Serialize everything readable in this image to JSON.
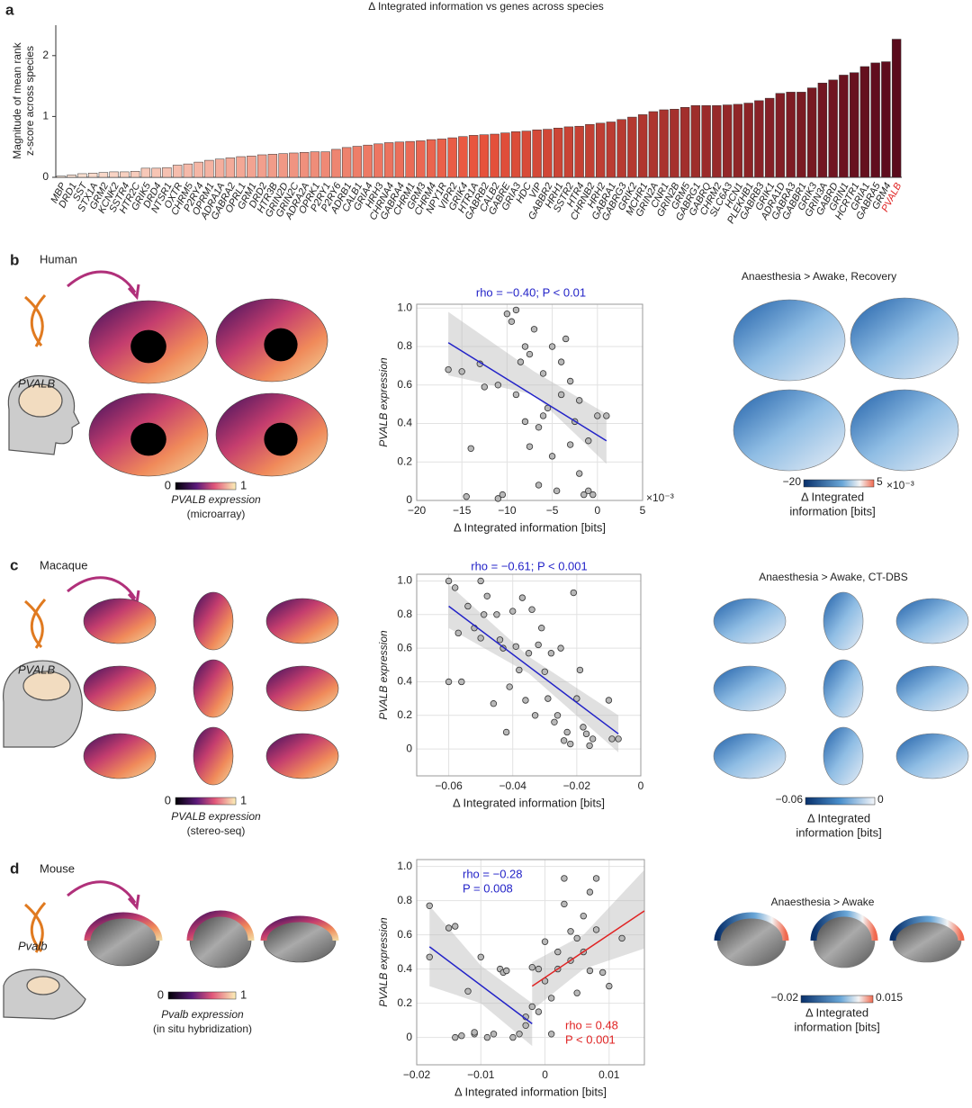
{
  "chart_data": [
    {
      "type": "bar",
      "panel": "a",
      "title": "Δ Integrated information vs genes across species",
      "ylabel": [
        "Magnitude of mean rank",
        "z-score across species"
      ],
      "categories": [
        "MBP",
        "DRD1",
        "SST",
        "STX1A",
        "GRM2",
        "KCNK2",
        "SSTR4",
        "HTR2C",
        "GRIK5",
        "DRD4",
        "NTSR1",
        "OXTR",
        "CHRM5",
        "P2RY4",
        "OPRM1",
        "ADRA1A",
        "GABRA2",
        "OPRL1",
        "GRM1",
        "DRD2",
        "HTR3B",
        "GRIN2D",
        "GRIN2C",
        "ADRA2A",
        "OPRK1",
        "P2RY1",
        "P2RY6",
        "ADRB1",
        "CALB1",
        "GRIA4",
        "HRH3",
        "CHRNA4",
        "GABRA4",
        "CHRM1",
        "GRM3",
        "CHRM4",
        "NPY1R",
        "VIPR2",
        "GRIK4",
        "HTR1A",
        "GABRB2",
        "CALB2",
        "GABRE",
        "GRIA3",
        "HDC",
        "VIP",
        "GABBR2",
        "HRH1",
        "SSTR2",
        "HTR4",
        "CHRNB2",
        "HRH2",
        "GABRA1",
        "GABRG3",
        "GRIK2",
        "MCHR1",
        "GRIN2A",
        "CNR1",
        "GRIN2B",
        "GRM5",
        "GABRG1",
        "GABRQ",
        "CHRM2",
        "SLC6A3",
        "HCN1",
        "PLEKHB1",
        "GABRB3",
        "GRIK1",
        "ADRA1D",
        "GABRA3",
        "GABBR1",
        "GRIK3",
        "GRIN3A",
        "GABRD",
        "GRIN1",
        "HCRTR1",
        "GRIA1",
        "GABRA5",
        "GRM4",
        "PVALB"
      ],
      "values": [
        0.02,
        0.04,
        0.06,
        0.07,
        0.08,
        0.09,
        0.09,
        0.1,
        0.15,
        0.15,
        0.16,
        0.2,
        0.22,
        0.25,
        0.28,
        0.3,
        0.32,
        0.34,
        0.35,
        0.37,
        0.38,
        0.39,
        0.4,
        0.41,
        0.42,
        0.42,
        0.46,
        0.49,
        0.51,
        0.53,
        0.55,
        0.57,
        0.58,
        0.59,
        0.6,
        0.62,
        0.63,
        0.65,
        0.67,
        0.69,
        0.7,
        0.71,
        0.73,
        0.75,
        0.76,
        0.78,
        0.79,
        0.81,
        0.83,
        0.84,
        0.87,
        0.89,
        0.91,
        0.95,
        0.99,
        1.03,
        1.08,
        1.11,
        1.12,
        1.15,
        1.18,
        1.18,
        1.18,
        1.19,
        1.2,
        1.22,
        1.26,
        1.3,
        1.38,
        1.4,
        1.4,
        1.47,
        1.55,
        1.6,
        1.68,
        1.72,
        1.82,
        1.88,
        1.9,
        2.27
      ],
      "colormap": [
        "#fbe6d8",
        "#e8533c",
        "#5a0a1c"
      ],
      "highlight_index": 79,
      "highlight_color": "#e02424",
      "ylim": [
        0,
        2.5
      ],
      "yticks": [
        0,
        1,
        2
      ]
    },
    {
      "type": "scatter",
      "title": "rho = −0.40; P < 0.01",
      "title_color": "#2323c8",
      "xlabel": "Δ Integrated information [bits]",
      "ylabel": "PVALB expression",
      "x_multiplier": "×10⁻³",
      "x": [
        -16.5,
        -15,
        -14.5,
        -14,
        -13,
        -12.5,
        -11,
        -10.5,
        -10,
        -9.5,
        -9,
        -9,
        -8.5,
        -8,
        -8,
        -7.5,
        -7,
        -6.5,
        -6.5,
        -6,
        -5.5,
        -5,
        -5,
        -4.5,
        -4,
        -4,
        -3.5,
        -3,
        -3,
        -2.5,
        -2,
        -2,
        -1.5,
        -1,
        -1,
        -0.5,
        0,
        -6,
        -11,
        -7.5,
        1
      ],
      "values": [
        0.68,
        0.67,
        0.02,
        0.27,
        0.71,
        0.59,
        0.01,
        0.03,
        0.97,
        0.93,
        0.99,
        0.55,
        0.72,
        0.8,
        0.41,
        0.28,
        0.89,
        0.08,
        0.38,
        0.66,
        0.48,
        0.8,
        0.23,
        0.05,
        0.72,
        0.55,
        0.84,
        0.29,
        0.62,
        0.41,
        0.52,
        0.14,
        0.03,
        0.31,
        0.05,
        0.03,
        0.44,
        0.44,
        0.6,
        0.76,
        0.44
      ],
      "fits": [
        {
          "x": [
            -16.5,
            1
          ],
          "y": [
            0.82,
            0.31
          ],
          "color": "#2323c8"
        }
      ],
      "ci": [
        {
          "x": [
            -16.5,
            -7,
            1
          ],
          "lower": [
            0.65,
            0.55,
            0.19
          ],
          "upper": [
            0.98,
            0.67,
            0.45
          ]
        }
      ],
      "xlim": [
        -20,
        5
      ],
      "xticks": [
        {
          "value": -20,
          "label": "−20"
        },
        {
          "value": -15,
          "label": "−15"
        },
        {
          "value": -10,
          "label": "−10"
        },
        {
          "value": -5,
          "label": "−5"
        },
        0,
        5
      ],
      "ylim": [
        0,
        1.02
      ],
      "yticks": [
        0,
        0.2,
        0.4,
        0.6,
        0.8,
        {
          "value": 1,
          "label": "1.0"
        }
      ],
      "grid": true
    },
    {
      "type": "scatter",
      "title": "rho = −0.61; P < 0.001",
      "title_color": "#2323c8",
      "xlabel": "Δ Integrated information [bits]",
      "ylabel": "PVALB expression",
      "x": [
        -0.06,
        -0.06,
        -0.058,
        -0.057,
        -0.056,
        -0.054,
        -0.052,
        -0.05,
        -0.05,
        -0.049,
        -0.048,
        -0.046,
        -0.045,
        -0.044,
        -0.043,
        -0.042,
        -0.041,
        -0.04,
        -0.039,
        -0.038,
        -0.037,
        -0.036,
        -0.035,
        -0.034,
        -0.033,
        -0.032,
        -0.031,
        -0.03,
        -0.029,
        -0.028,
        -0.027,
        -0.026,
        -0.025,
        -0.024,
        -0.023,
        -0.022,
        -0.021,
        -0.02,
        -0.019,
        -0.018,
        -0.017,
        -0.016,
        -0.015,
        -0.01,
        -0.009,
        -0.007
      ],
      "values": [
        1.0,
        0.4,
        0.96,
        0.69,
        0.4,
        0.85,
        0.72,
        0.66,
        1.0,
        0.8,
        0.91,
        0.27,
        0.8,
        0.65,
        0.6,
        0.1,
        0.37,
        0.82,
        0.61,
        0.47,
        0.9,
        0.29,
        0.57,
        0.83,
        0.2,
        0.62,
        0.72,
        0.46,
        0.3,
        0.57,
        0.16,
        0.2,
        0.6,
        0.05,
        0.1,
        0.03,
        0.93,
        0.3,
        0.47,
        0.13,
        0.09,
        0.02,
        0.06,
        0.29,
        0.06,
        0.06
      ],
      "fits": [
        {
          "x": [
            -0.06,
            -0.007
          ],
          "y": [
            0.85,
            0.09
          ],
          "color": "#2323c8"
        }
      ],
      "ci": [
        {
          "x": [
            -0.06,
            -0.035,
            -0.007
          ],
          "lower": [
            0.72,
            0.45,
            -0.02
          ],
          "upper": [
            0.98,
            0.55,
            0.2
          ]
        }
      ],
      "xlim": [
        -0.07,
        0
      ],
      "xticks": [
        {
          "value": -0.06,
          "label": "−0.06"
        },
        {
          "value": -0.04,
          "label": "−0.04"
        },
        {
          "value": -0.02,
          "label": "−0.02"
        },
        0
      ],
      "ylim": [
        -0.16,
        1.04
      ],
      "yticks": [
        0,
        0.2,
        0.4,
        0.6,
        0.8,
        {
          "value": 1,
          "label": "1.0"
        }
      ],
      "grid": true
    },
    {
      "type": "scatter",
      "xlabel": "Δ Integrated information [bits]",
      "ylabel": "PVALB expression",
      "annotations": [
        {
          "lines": [
            "rho = −0.28",
            "P = 0.008"
          ],
          "color": "#2323c8"
        },
        {
          "lines": [
            "rho = 0.48",
            "P < 0.001"
          ],
          "color": "#e02424"
        }
      ],
      "x": [
        -0.018,
        -0.018,
        -0.015,
        -0.014,
        -0.014,
        -0.013,
        -0.012,
        -0.011,
        -0.011,
        -0.01,
        -0.009,
        -0.008,
        -0.007,
        -0.0065,
        -0.006,
        -0.005,
        -0.004,
        -0.003,
        -0.003,
        -0.002,
        -0.002,
        -0.001,
        -0.001,
        0,
        0,
        0.001,
        0.001,
        0.002,
        0.002,
        0.003,
        0.003,
        0.004,
        0.004,
        0.005,
        0.005,
        0.006,
        0.006,
        0.007,
        0.007,
        0.008,
        0.008,
        0.009,
        0.01,
        0.012
      ],
      "values": [
        0.77,
        0.47,
        0.64,
        0.65,
        0.0,
        0.01,
        0.27,
        0.02,
        0.03,
        0.47,
        0.0,
        0.02,
        0.4,
        0.38,
        0.39,
        0.0,
        0.02,
        0.07,
        0.12,
        0.18,
        0.41,
        0.4,
        0.15,
        0.56,
        0.33,
        0.02,
        0.23,
        0.5,
        0.4,
        0.78,
        0.93,
        0.62,
        0.45,
        0.58,
        0.26,
        0.71,
        0.5,
        0.85,
        0.39,
        0.93,
        0.63,
        0.38,
        0.3,
        0.58
      ],
      "fits": [
        {
          "x": [
            -0.018,
            -0.002
          ],
          "y": [
            0.53,
            0.08
          ],
          "color": "#2323c8"
        },
        {
          "x": [
            -0.002,
            0.0155
          ],
          "y": [
            0.3,
            0.74
          ],
          "color": "#e02424"
        }
      ],
      "ci": [
        {
          "x": [
            -0.018,
            -0.01,
            -0.002
          ],
          "lower": [
            0.3,
            0.2,
            -0.05
          ],
          "upper": [
            0.77,
            0.42,
            0.2
          ]
        },
        {
          "x": [
            -0.002,
            0.006,
            0.0155
          ],
          "lower": [
            0.16,
            0.4,
            0.52
          ],
          "upper": [
            0.44,
            0.6,
            0.98
          ]
        }
      ],
      "xlim": [
        -0.02,
        0.0155
      ],
      "xticks": [
        {
          "value": -0.02,
          "label": "−0.02"
        },
        {
          "value": -0.01,
          "label": "−0.01"
        },
        0,
        0.01
      ],
      "ylim": [
        -0.16,
        1.04
      ],
      "yticks": [
        0,
        0.2,
        0.4,
        0.6,
        0.8,
        {
          "value": 1,
          "label": "1.0"
        }
      ],
      "grid": true
    }
  ],
  "panels": [
    {
      "letter": "b",
      "species": "Human",
      "gene": "PVALB",
      "expr_ticks": [
        0,
        1
      ],
      "expr_label": [
        "PVALB expression",
        "(microarray)"
      ],
      "map_title": "Anaesthesia > Awake, Recovery",
      "map_ticks": [
        {
          "value": -20,
          "label": "−20"
        },
        5
      ],
      "map_multiplier": "×10⁻³",
      "map_label": [
        "Δ Integrated",
        "information [bits]"
      ]
    },
    {
      "letter": "c",
      "species": "Macaque",
      "gene": "PVALB",
      "expr_ticks": [
        0,
        1
      ],
      "expr_label": [
        "PVALB expression",
        "(stereo-seq)"
      ],
      "map_title": "Anaesthesia > Awake, CT-DBS",
      "map_ticks": [
        {
          "value": -0.06,
          "label": "−0.06"
        },
        0
      ],
      "map_label": [
        "Δ Integrated",
        "information [bits]"
      ]
    },
    {
      "letter": "d",
      "species": "Mouse",
      "gene": "Pvalb",
      "expr_ticks": [
        0,
        1
      ],
      "expr_label": [
        "Pvalb expression",
        "(in situ hybridization)"
      ],
      "map_title": "Anaesthesia > Awake",
      "map_ticks": [
        {
          "value": -0.02,
          "label": "−0.02"
        },
        0.015
      ],
      "map_label": [
        "Δ Integrated",
        "information [bits]"
      ]
    }
  ]
}
